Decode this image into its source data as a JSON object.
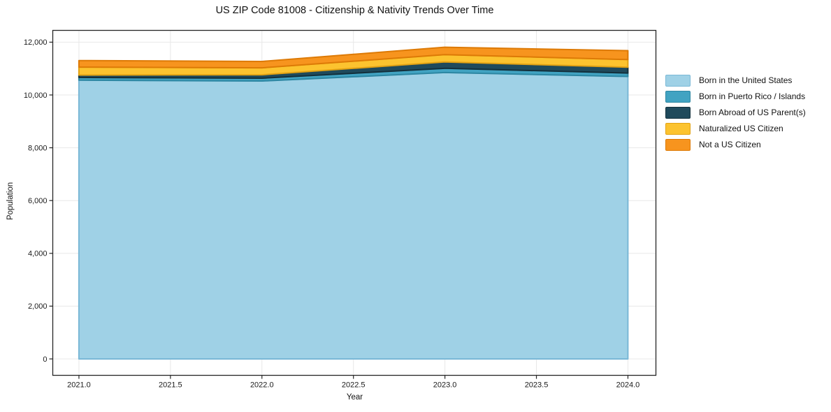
{
  "title": "US ZIP Code 81008 - Citizenship & Nativity Trends Over Time",
  "chart_data": {
    "type": "area",
    "stacked": true,
    "title": "US ZIP Code 81008 - Citizenship & Nativity Trends Over Time",
    "xlabel": "Year",
    "ylabel": "Population",
    "x": [
      2021,
      2022,
      2023,
      2024
    ],
    "series": [
      {
        "name": "Born in the United States",
        "values": [
          10560,
          10530,
          10850,
          10700
        ],
        "fill": "#9fd1e6",
        "edge": "#7ab8d6"
      },
      {
        "name": "Born in Puerto Rico / Islands",
        "values": [
          105,
          105,
          160,
          130
        ],
        "fill": "#41a3c2",
        "edge": "#2d87a3"
      },
      {
        "name": "Born Abroad of US Parent(s)",
        "values": [
          90,
          130,
          240,
          220
        ],
        "fill": "#1f4a5c",
        "edge": "#13303c"
      },
      {
        "name": "Naturalized US Citizen",
        "values": [
          300,
          265,
          280,
          290
        ],
        "fill": "#fcc32f",
        "edge": "#e2a214"
      },
      {
        "name": "Not a US Citizen",
        "values": [
          250,
          240,
          280,
          340
        ],
        "fill": "#f7941e",
        "edge": "#dd7a06"
      }
    ],
    "xticks": [
      2021.0,
      2021.5,
      2022.0,
      2022.5,
      2023.0,
      2023.5,
      2024.0
    ],
    "xtick_labels": [
      "2021.0",
      "2021.5",
      "2022.0",
      "2022.5",
      "2023.0",
      "2023.5",
      "2024.0"
    ],
    "yticks": [
      0,
      2000,
      4000,
      6000,
      8000,
      10000,
      12000
    ],
    "ytick_labels": [
      "0",
      "2,000",
      "4,000",
      "6,000",
      "8,000",
      "10,000",
      "12,000"
    ],
    "xlim": [
      2020.857,
      2024.153
    ],
    "ylim": [
      -622,
      12447
    ],
    "grid": true,
    "legend_position": "right"
  }
}
